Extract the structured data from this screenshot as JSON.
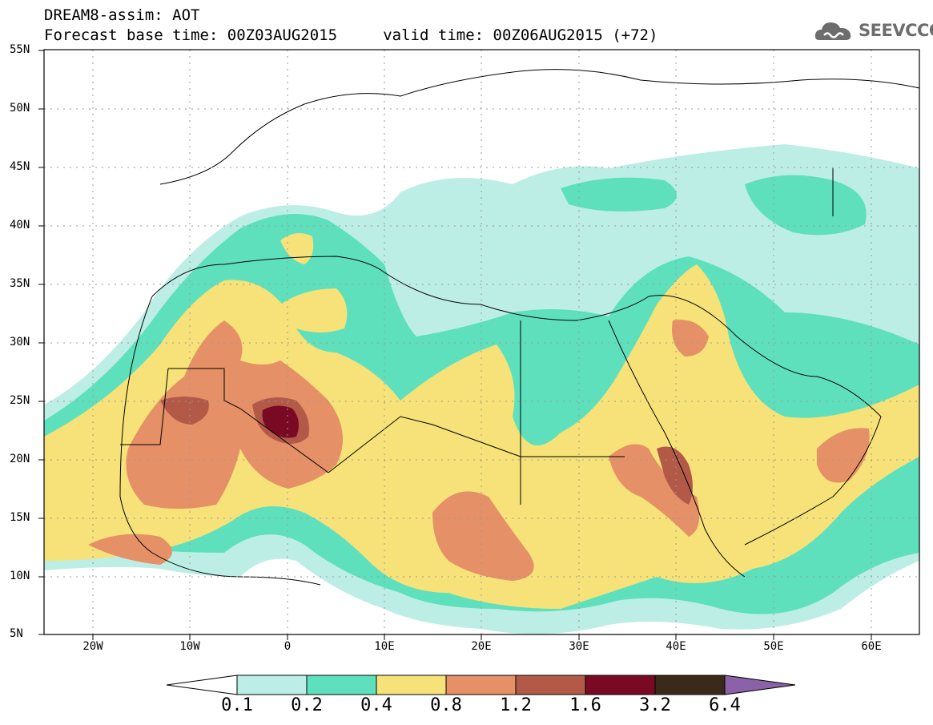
{
  "title": {
    "line1": "DREAM8-assim: AOT",
    "line2": "Forecast base time: 00Z03AUG2015     valid time: 00Z06AUG2015 (+72)"
  },
  "logo": {
    "text": "SEEVCCC",
    "icon": "cloud-logo-icon"
  },
  "map": {
    "lon_range": [
      -25,
      65
    ],
    "lat_range": [
      5,
      55
    ],
    "lat_labels": [
      "55N",
      "50N",
      "45N",
      "40N",
      "35N",
      "30N",
      "25N",
      "20N",
      "15N",
      "10N",
      "5N"
    ],
    "lon_labels": [
      "20W",
      "10W",
      "0",
      "10E",
      "20E",
      "30E",
      "40E",
      "50E",
      "60E"
    ],
    "gridlines": "dotted"
  },
  "legend": {
    "levels": [
      "0.1",
      "0.2",
      "0.4",
      "0.8",
      "1.2",
      "1.6",
      "3.2",
      "6.4"
    ],
    "colors": [
      "#ffffff",
      "#bdeee6",
      "#5fe0bd",
      "#f6e278",
      "#e59066",
      "#b25a47",
      "#7a0a24",
      "#3b2a1a",
      "#8b62a8"
    ]
  }
}
